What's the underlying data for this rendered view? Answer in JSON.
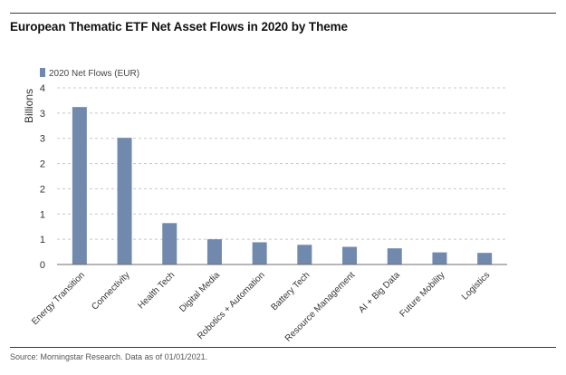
{
  "title": "European Thematic ETF Net Asset Flows in 2020 by Theme",
  "source": "Source: Morningstar Research. Data as of 01/01/2021.",
  "chart_data": {
    "type": "bar",
    "title": "European Thematic ETF Net Asset Flows in 2020 by Theme",
    "ylabel": "Billions",
    "xlabel": "",
    "ylim": [
      0,
      3.5
    ],
    "yticks": [
      0,
      0.5,
      1,
      1.5,
      2,
      2.5,
      3,
      3.5
    ],
    "ytick_labels": [
      "0",
      "1",
      "1",
      "2",
      "2",
      "3",
      "3",
      "4"
    ],
    "grid": true,
    "legend_position": "top-left",
    "categories": [
      "Energy Transition",
      "Connectivity",
      "Health Tech",
      "Digital Media",
      "Robotics + Automation",
      "Battery Tech",
      "Resource Management",
      "AI + Big Data",
      "Future Mobility",
      "Logistics"
    ],
    "series": [
      {
        "name": "2020 Net Flows (EUR)",
        "color": "#7089ad",
        "values": [
          3.12,
          2.51,
          0.82,
          0.5,
          0.44,
          0.39,
          0.35,
          0.32,
          0.24,
          0.23
        ]
      }
    ]
  }
}
